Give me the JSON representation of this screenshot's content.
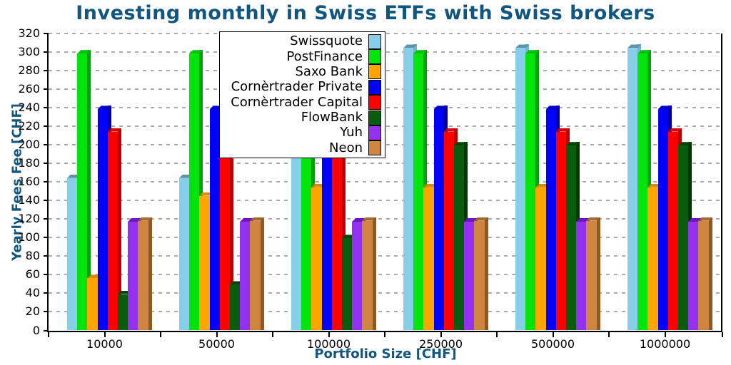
{
  "colors": {
    "heading_blue": "#11567E",
    "grid_gray": "#ababab",
    "axis_black": "#000000",
    "background": "#ffffff"
  },
  "chart_data": {
    "type": "bar",
    "title": "Investing monthly in Swiss ETFs with Swiss brokers",
    "xlabel": "Portfolio Size [CHF]",
    "ylabel": "Yearly Fees Fee [CHF]",
    "categories": [
      "10000",
      "50000",
      "100000",
      "250000",
      "500000",
      "1000000"
    ],
    "series": [
      {
        "name": "Swissquote",
        "color": "#87CEEB",
        "cap": "#5E92AB",
        "side": "#6FB3D2",
        "values": [
          168,
          168,
          208,
          308,
          308,
          308
        ]
      },
      {
        "name": "PostFinance",
        "color": "#00E40B",
        "cap": "#00C409",
        "side": "#00A308",
        "values": [
          302,
          302,
          302,
          302,
          302,
          302
        ]
      },
      {
        "name": "Saxo Bank",
        "color": "#FFA500",
        "cap": "#D88B00",
        "side": "#BA7800",
        "values": [
          60,
          149,
          158,
          158,
          158,
          158
        ]
      },
      {
        "name": "Cornèrtrader Private",
        "color": "#0000FF",
        "cap": "#0000C8",
        "side": "#0000A0",
        "values": [
          242,
          242,
          242,
          242,
          242,
          242
        ]
      },
      {
        "name": "Cornèrtrader Capital",
        "color": "#FF0000",
        "cap": "#D80000",
        "side": "#BA0000",
        "values": [
          218,
          218,
          218,
          218,
          218,
          218
        ]
      },
      {
        "name": "FlowBank",
        "color": "#075D0B",
        "cap": "#054708",
        "side": "#033805",
        "values": [
          43,
          53,
          103,
          203,
          203,
          203
        ]
      },
      {
        "name": "Yuh",
        "color": "#9430F0",
        "cap": "#6E14C4",
        "side": "#5C0FA8",
        "values": [
          121,
          121,
          121,
          121,
          121,
          121
        ]
      },
      {
        "name": "Neon",
        "color": "#CD853F",
        "cap": "#A86A2C",
        "side": "#8F5A22",
        "values": [
          122,
          122,
          122,
          122,
          122,
          122
        ]
      }
    ],
    "ylim": [
      0,
      320
    ],
    "ytick_step": 20,
    "grid": "horizontal-dashed",
    "legend_position": "upper center, overlapping plot"
  }
}
